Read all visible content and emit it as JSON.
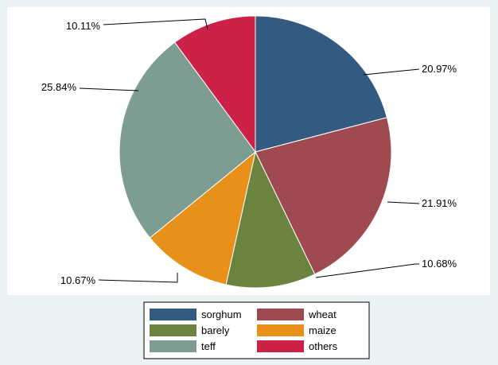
{
  "chart_data": {
    "type": "pie",
    "title": "",
    "start_angle_deg": 90,
    "direction": "clockwise",
    "slices": [
      {
        "name": "sorghum",
        "value": 20.97,
        "label": "20.97%",
        "color": "#335a80"
      },
      {
        "name": "wheat",
        "value": 21.91,
        "label": "21.91%",
        "color": "#9e4a50"
      },
      {
        "name": "barely",
        "value": 10.68,
        "label": "10.68%",
        "color": "#6a8440"
      },
      {
        "name": "maize",
        "value": 10.67,
        "label": "10.67%",
        "color": "#e8901a"
      },
      {
        "name": "teff",
        "value": 25.84,
        "label": "25.84%",
        "color": "#7e9d92"
      },
      {
        "name": "others",
        "value": 10.11,
        "label": "10.11%",
        "color": "#cc2248"
      }
    ],
    "legend": {
      "placement": "bottom",
      "columns": 2,
      "items": [
        "sorghum",
        "wheat",
        "barely",
        "maize",
        "teff",
        "others"
      ]
    }
  },
  "colors": {
    "background": "#eaf2f3",
    "plot_background": "#ffffff",
    "slice_border": "#ffffff",
    "leader_line": "#000000"
  }
}
